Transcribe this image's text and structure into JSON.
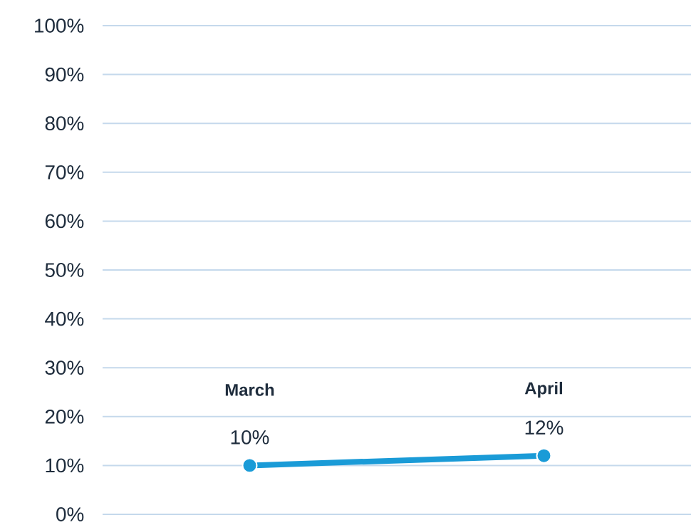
{
  "chart_data": {
    "type": "line",
    "categories": [
      "March",
      "April"
    ],
    "series": [
      {
        "color": "#1a9bd7",
        "values": [
          10,
          12
        ],
        "value_labels": [
          "10%",
          "12%"
        ]
      }
    ],
    "ylim": [
      0,
      100
    ],
    "yticks": [
      {
        "value": 0,
        "label": "0%"
      },
      {
        "value": 10,
        "label": "10%"
      },
      {
        "value": 20,
        "label": "20%"
      },
      {
        "value": 30,
        "label": "30%"
      },
      {
        "value": 40,
        "label": "40%"
      },
      {
        "value": 50,
        "label": "50%"
      },
      {
        "value": 60,
        "label": "60%"
      },
      {
        "value": 70,
        "label": "70%"
      },
      {
        "value": 80,
        "label": "80%"
      },
      {
        "value": 90,
        "label": "90%"
      },
      {
        "value": 100,
        "label": "100%"
      }
    ],
    "grid": "y",
    "marker": "circle",
    "line_style": "solid"
  }
}
